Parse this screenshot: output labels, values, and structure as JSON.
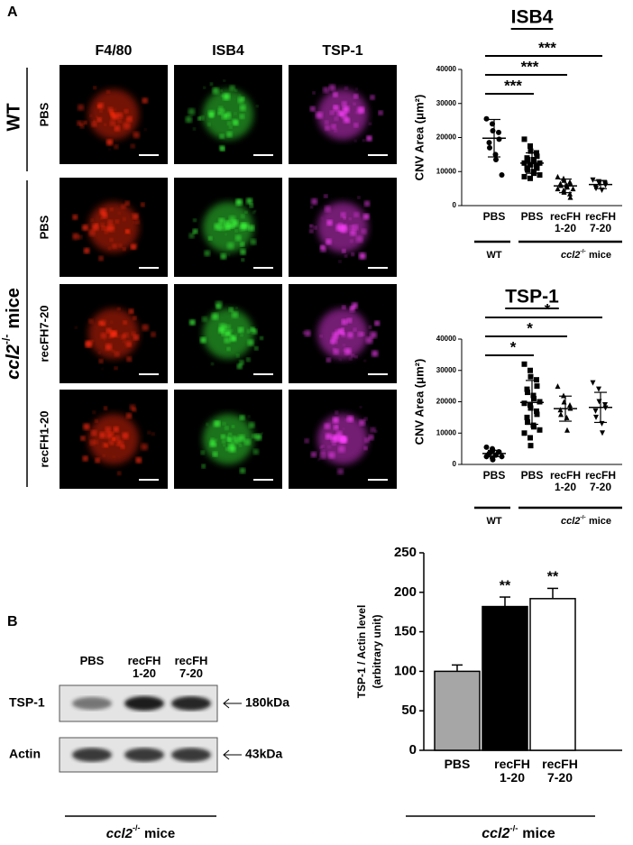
{
  "panels": {
    "a": "A",
    "b": "B"
  },
  "microscopy": {
    "columns": [
      "F4/80",
      "ISB4",
      "TSP-1"
    ],
    "rows": [
      "PBS",
      "PBS",
      "recFH7-20",
      "recFH1-20"
    ],
    "groups": [
      {
        "label": "WT"
      },
      {
        "gene": "ccl2",
        "sup": "-/-",
        "rest": "mice"
      }
    ]
  },
  "blot": {
    "lanes": [
      "PBS",
      "recFH 1-20",
      "recFH 7-20"
    ],
    "bands": [
      {
        "label": "TSP-1",
        "size": "180kDa"
      },
      {
        "label": "Actin",
        "size": "43kDa"
      }
    ],
    "group": {
      "gene": "ccl2",
      "sup": "-/-",
      "rest": "mice"
    }
  },
  "chart_data": [
    {
      "type": "dot",
      "title": "ISB4",
      "ylabel": "CNV Area (μm²)",
      "categories": [
        "PBS",
        "PBS",
        "recFH 1-20",
        "recFH 7-20"
      ],
      "markers": [
        "circle",
        "square",
        "triangle",
        "triangle-down"
      ],
      "points": [
        [
          25500,
          24000,
          22000,
          21500,
          19500,
          18500,
          17000,
          15000,
          13500,
          9000
        ],
        [
          19500,
          17500,
          16000,
          15500,
          14500,
          14000,
          13500,
          13500,
          13000,
          12500,
          12500,
          12000,
          12000,
          11500,
          11000,
          11000,
          10500,
          10000,
          9500,
          9000,
          8500,
          8000
        ],
        [
          8500,
          8000,
          7500,
          7000,
          6500,
          6500,
          6000,
          6000,
          5500,
          5000,
          5000,
          4500,
          4000,
          3500,
          2500
        ],
        [
          7500,
          7000,
          6500,
          6500,
          6000,
          5500,
          5000,
          4500
        ]
      ],
      "means": [
        19800,
        12500,
        5800,
        6200
      ],
      "sds": [
        5500,
        3000,
        2000,
        1200
      ],
      "ylim": [
        0,
        40000
      ],
      "yticks": [
        0,
        10000,
        20000,
        30000,
        40000
      ],
      "significance": [
        {
          "from": 0,
          "to": 3,
          "label": "***"
        },
        {
          "from": 0,
          "to": 2,
          "label": "***"
        },
        {
          "from": 0,
          "to": 1,
          "label": "***"
        }
      ],
      "groups": [
        {
          "label": "WT"
        },
        {
          "gene": "ccl2",
          "sup": "-/-",
          "rest": "mice"
        }
      ]
    },
    {
      "type": "dot",
      "title": "TSP-1",
      "ylabel": "CNV Area (μm²)",
      "categories": [
        "PBS",
        "PBS",
        "recFH 1-20",
        "recFH 7-20"
      ],
      "markers": [
        "circle",
        "square",
        "triangle",
        "triangle-down"
      ],
      "points": [
        [
          5500,
          5000,
          4500,
          4000,
          4000,
          3500,
          3500,
          3000,
          3000,
          2500,
          2500,
          2000,
          1500
        ],
        [
          32000,
          30000,
          28000,
          27000,
          25000,
          24000,
          23000,
          22000,
          21000,
          20000,
          19500,
          19000,
          18000,
          17000,
          16000,
          15000,
          13500,
          12500,
          12000,
          11000,
          10000,
          8500,
          6000
        ],
        [
          25000,
          22000,
          20000,
          19000,
          18000,
          17500,
          16000,
          15000,
          11000
        ],
        [
          26000,
          24000,
          20000,
          19000,
          18000,
          17000,
          15000,
          13000,
          10000
        ]
      ],
      "means": [
        3500,
        19800,
        17800,
        18200
      ],
      "sds": [
        1000,
        7000,
        4000,
        4800
      ],
      "ylim": [
        0,
        40000
      ],
      "yticks": [
        0,
        10000,
        20000,
        30000,
        40000
      ],
      "significance": [
        {
          "from": 0,
          "to": 3,
          "label": "*"
        },
        {
          "from": 0,
          "to": 2,
          "label": "*"
        },
        {
          "from": 0,
          "to": 1,
          "label": "*"
        }
      ],
      "groups": [
        {
          "label": "WT"
        },
        {
          "gene": "ccl2",
          "sup": "-/-",
          "rest": "mice"
        }
      ]
    },
    {
      "type": "bar",
      "ylabel": [
        "TSP-1 / Actin level",
        "(arbitrary unit)"
      ],
      "categories": [
        "PBS",
        "recFH 1-20",
        "recFH 7-20"
      ],
      "values": [
        100,
        182,
        192
      ],
      "errors": [
        8,
        12,
        13
      ],
      "colors": [
        "#a6a6a6",
        "#000000",
        "#ffffff"
      ],
      "significance": [
        null,
        "**",
        "**"
      ],
      "ylim": [
        0,
        250
      ],
      "yticks": [
        0,
        50,
        100,
        150,
        200,
        250
      ],
      "group": {
        "gene": "ccl2",
        "sup": "-/-",
        "rest": "mice"
      }
    }
  ]
}
